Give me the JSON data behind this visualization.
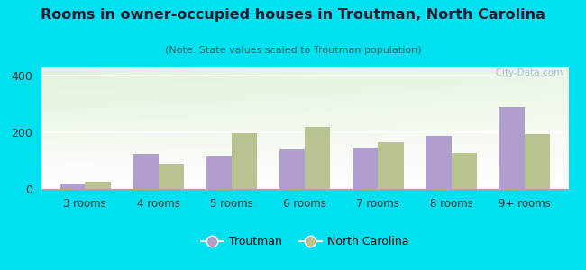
{
  "title": "Rooms in owner-occupied houses in Troutman, North Carolina",
  "subtitle": "(Note: State values scaled to Troutman population)",
  "categories": [
    "3 rooms",
    "4 rooms",
    "5 rooms",
    "6 rooms",
    "7 rooms",
    "8 rooms",
    "9+ rooms"
  ],
  "troutman_values": [
    20,
    125,
    118,
    140,
    148,
    188,
    290
  ],
  "nc_values": [
    25,
    88,
    198,
    220,
    165,
    128,
    193
  ],
  "troutman_color": "#b09fcc",
  "nc_color": "#b8c490",
  "background_outer": "#00e0f0",
  "ylim": [
    0,
    430
  ],
  "yticks": [
    0,
    200,
    400
  ],
  "bar_width": 0.35,
  "legend_labels": [
    "Troutman",
    "North Carolina"
  ],
  "watermark": "  City-Data.com",
  "title_color": "#1a1a2e",
  "subtitle_color": "#336666",
  "tick_color": "#333333",
  "axis_label_fontsize": 8.5,
  "title_fontsize": 11.5,
  "subtitle_fontsize": 8
}
